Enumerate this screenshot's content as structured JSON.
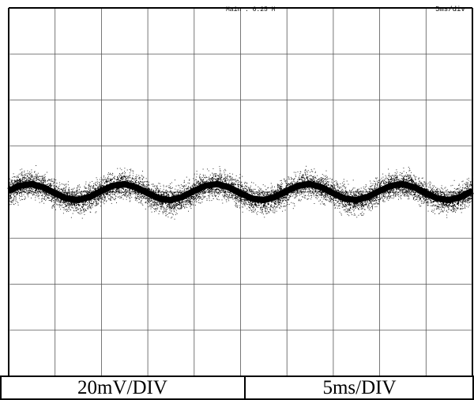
{
  "header": {
    "record_length_label": "Main : 6.25 M",
    "timebase_label": "5ms/div"
  },
  "caption": {
    "vertical_scale": "20mV/DIV",
    "horizontal_scale": "5ms/DIV"
  },
  "chart_data": {
    "type": "line",
    "title": "",
    "xlabel": "5ms/DIV",
    "ylabel": "20mV/DIV",
    "x_unit": "ms",
    "y_unit": "mV",
    "xlim": [
      0,
      50
    ],
    "ylim": [
      -80,
      80
    ],
    "grid": true,
    "grid_divisions": {
      "x": 10,
      "y": 8
    },
    "series": [
      {
        "kind": "ripple",
        "offset_mV": 0,
        "amplitude_mV": 3.5,
        "period_ms": 10,
        "noise_peak_to_peak_mV": 16,
        "x": [
          0,
          1.25,
          2.5,
          3.75,
          5,
          6.25,
          7.5,
          8.75,
          10,
          11.25,
          12.5,
          13.75,
          15,
          16.25,
          17.5,
          18.75,
          20,
          21.25,
          22.5,
          23.75,
          25,
          26.25,
          27.5,
          28.75,
          30,
          31.25,
          32.5,
          33.75,
          35,
          36.25,
          37.5,
          38.75,
          40,
          41.25,
          42.5,
          43.75,
          45,
          46.25,
          47.5,
          48.75,
          50
        ],
        "y": [
          0.5,
          2.5,
          3.5,
          2.5,
          0,
          -2.5,
          -3.5,
          -2.5,
          0,
          2.5,
          3.5,
          2.5,
          0,
          -2.5,
          -3.5,
          -2.5,
          0,
          2.5,
          3.5,
          2.5,
          0,
          -2.5,
          -3.5,
          -2.5,
          0,
          2.5,
          3.5,
          2.5,
          0,
          -2.5,
          -3.5,
          -2.5,
          0,
          2.5,
          3.5,
          2.5,
          0,
          -2.5,
          -3.5,
          -2.5,
          0
        ]
      }
    ]
  }
}
